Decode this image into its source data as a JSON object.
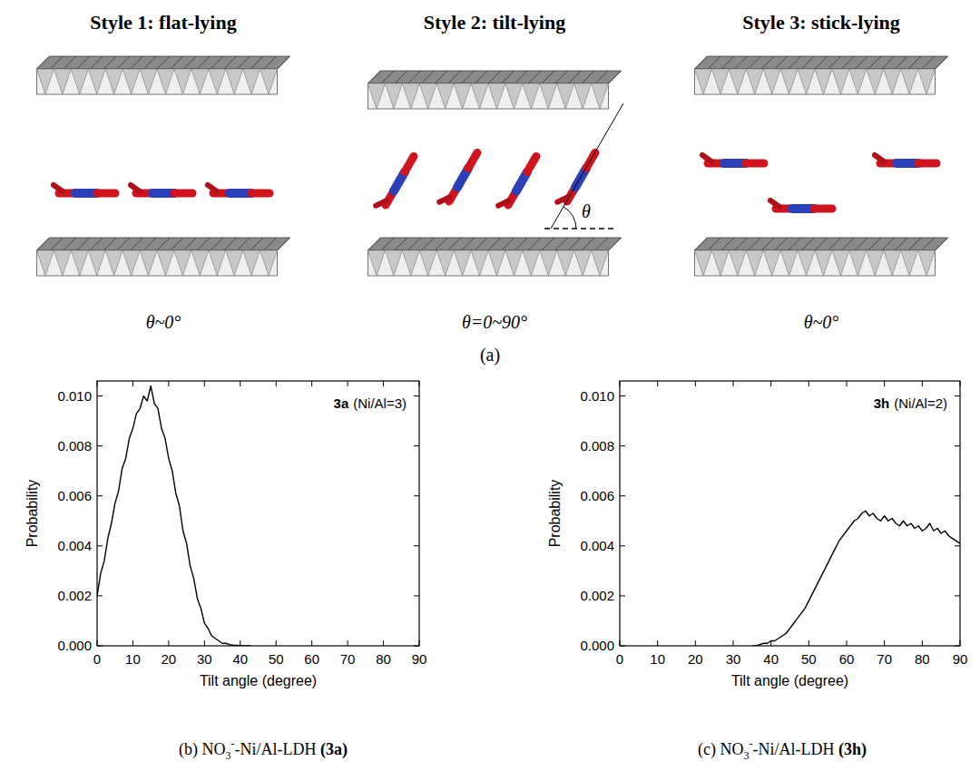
{
  "diagram": {
    "styles": [
      {
        "title": "Style 1: flat-lying",
        "angle": "θ~0°"
      },
      {
        "title": "Style 2: tilt-lying",
        "angle": "θ=0~90°"
      },
      {
        "title": "Style 3: stick-lying",
        "angle": "θ~0°"
      }
    ],
    "theta": "θ",
    "label": "(a)"
  },
  "chart_data": [
    {
      "type": "line",
      "color": "#000000",
      "grid": false,
      "x_label": "Tilt angle (degree)",
      "y_label": "Probability",
      "annotation": {
        "tag": "3a",
        "text": "(Ni/Al=3)"
      },
      "xlim": [
        0,
        90
      ],
      "xticks": [
        0,
        10,
        20,
        30,
        40,
        50,
        60,
        70,
        80,
        90
      ],
      "ylim": [
        0,
        0.0106
      ],
      "yticks": [
        {
          "value": 0,
          "label": "0.000"
        },
        {
          "value": 0.002,
          "label": "0.002"
        },
        {
          "value": 0.004,
          "label": "0.004"
        },
        {
          "value": 0.006,
          "label": "0.006"
        },
        {
          "value": 0.008,
          "label": "0.008"
        },
        {
          "value": 0.01,
          "label": "0.010"
        }
      ],
      "x": [
        0,
        1,
        2,
        3,
        4,
        5,
        6,
        7,
        8,
        9,
        10,
        11,
        12,
        13,
        14,
        15,
        16,
        17,
        18,
        19,
        20,
        21,
        22,
        23,
        24,
        25,
        26,
        27,
        28,
        29,
        30,
        31,
        32,
        33,
        34,
        35,
        36,
        37,
        38,
        39,
        40,
        41,
        42,
        43
      ],
      "values": [
        0.002,
        0.0029,
        0.0034,
        0.0043,
        0.0049,
        0.0057,
        0.0062,
        0.0071,
        0.0075,
        0.0083,
        0.0087,
        0.0093,
        0.0095,
        0.01,
        0.0098,
        0.0104,
        0.0097,
        0.0095,
        0.0087,
        0.0083,
        0.0075,
        0.007,
        0.0061,
        0.0056,
        0.0046,
        0.0041,
        0.0032,
        0.0027,
        0.0019,
        0.0015,
        0.0009,
        0.0007,
        0.0004,
        0.0003,
        0.0002,
        0.0001,
        0.0001,
        5e-05,
        3e-05,
        2e-05,
        1e-05,
        0,
        0,
        0
      ]
    },
    {
      "type": "line",
      "color": "#000000",
      "grid": false,
      "x_label": "Tilt angle (degree)",
      "y_label": "Probability",
      "annotation": {
        "tag": "3h",
        "text": "(Ni/Al=2)"
      },
      "xlim": [
        0,
        90
      ],
      "xticks": [
        0,
        10,
        20,
        30,
        40,
        50,
        60,
        70,
        80,
        90
      ],
      "ylim": [
        0,
        0.0106
      ],
      "yticks": [
        {
          "value": 0,
          "label": "0.000"
        },
        {
          "value": 0.002,
          "label": "0.002"
        },
        {
          "value": 0.004,
          "label": "0.004"
        },
        {
          "value": 0.006,
          "label": "0.006"
        },
        {
          "value": 0.008,
          "label": "0.008"
        },
        {
          "value": 0.01,
          "label": "0.010"
        }
      ],
      "x": [
        35,
        36,
        37,
        38,
        39,
        40,
        41,
        42,
        43,
        44,
        45,
        46,
        47,
        48,
        49,
        50,
        51,
        52,
        53,
        54,
        55,
        56,
        57,
        58,
        59,
        60,
        61,
        62,
        63,
        64,
        65,
        66,
        67,
        68,
        69,
        70,
        71,
        72,
        73,
        74,
        75,
        76,
        77,
        78,
        79,
        80,
        81,
        82,
        83,
        84,
        85,
        86,
        87,
        88,
        89,
        90
      ],
      "values": [
        0,
        0,
        5e-05,
        0.0001,
        0.0001,
        0.0002,
        0.0002,
        0.0003,
        0.0004,
        0.0005,
        0.0007,
        0.0009,
        0.0011,
        0.0013,
        0.0015,
        0.0018,
        0.0021,
        0.0024,
        0.0027,
        0.003,
        0.0033,
        0.0036,
        0.0039,
        0.0042,
        0.0044,
        0.0046,
        0.0048,
        0.005,
        0.0051,
        0.0053,
        0.0054,
        0.0052,
        0.0053,
        0.0051,
        0.005,
        0.0052,
        0.005,
        0.0051,
        0.0049,
        0.0048,
        0.005,
        0.0048,
        0.0049,
        0.0047,
        0.0048,
        0.0046,
        0.0047,
        0.0049,
        0.0046,
        0.0047,
        0.0045,
        0.0046,
        0.0044,
        0.0043,
        0.0042,
        0.0041
      ]
    }
  ],
  "captions": [
    {
      "prefix": "(b) NO",
      "sub": "3",
      "sup": "-",
      "suffix": "-Ni/Al-LDH ",
      "tag": "(3a)"
    },
    {
      "prefix": "(c) NO",
      "sub": "3",
      "sup": "-",
      "suffix": "-Ni/Al-LDH ",
      "tag": "(3h)"
    }
  ]
}
